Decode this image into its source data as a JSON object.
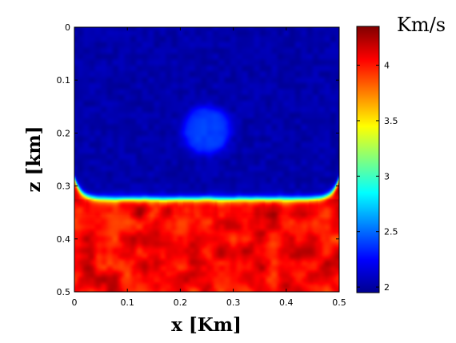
{
  "chart_data": {
    "type": "heatmap",
    "title": "",
    "xlabel": "x [Km]",
    "ylabel": "z [km]",
    "colorbar_label": "Km/s",
    "x_range": [
      0,
      0.5
    ],
    "z_range": [
      0,
      0.5
    ],
    "z_axis_direction": "downward",
    "x_ticks": [
      "0",
      "0.1",
      "0.2",
      "0.3",
      "0.4",
      "0.5"
    ],
    "z_ticks": [
      "0",
      "0.1",
      "0.2",
      "0.3",
      "0.4",
      "0.5"
    ],
    "colorbar_ticks": [
      "2",
      "2.5",
      "3",
      "3.5",
      "4"
    ],
    "colorbar_range": [
      1.95,
      4.35
    ],
    "colormap": "jet",
    "model": {
      "upper_layer_velocity": 2.05,
      "lower_layer_velocity": 4.05,
      "interface_depth": 0.325,
      "anomaly": {
        "center_x": 0.25,
        "center_z": 0.195,
        "radius": 0.045,
        "velocity": 2.4
      }
    }
  }
}
